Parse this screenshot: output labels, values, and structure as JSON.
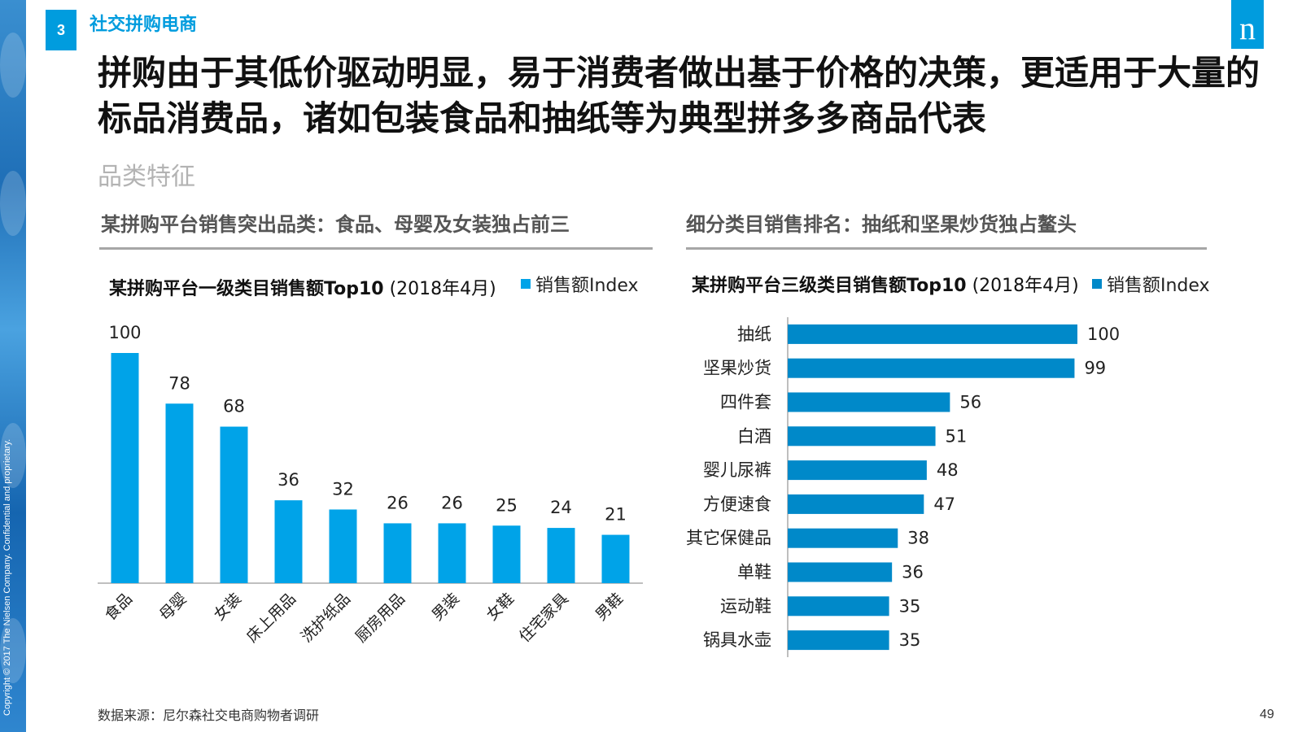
{
  "header": {
    "section_number": "3",
    "section_title": "社交拼购电商",
    "logo_letter": "n",
    "headline": "拼购由于其低价驱动明显，易于消费者做出基于价格的决策，更适用于大量的标品消费品，诸如包装食品和抽纸等为典型拼多多商品代表",
    "subhead": "品类特征"
  },
  "left_panel": {
    "title": "某拼购平台销售突出品类：食品、母婴及女装独占前三",
    "chart_title_bold": "某拼购平台一级类目销售额Top10",
    "chart_title_rest": " (2018年4月)",
    "legend_label": "销售额Index"
  },
  "right_panel": {
    "title": "细分类目销售排名：抽纸和坚果炒货独占鳌头",
    "chart_title_bold": "某拼购平台三级类目销售额Top10",
    "chart_title_rest": " (2018年4月)",
    "legend_label": "销售额Index"
  },
  "footer": {
    "source": "数据来源：尼尔森社交电商购物者调研",
    "page_number": "49",
    "copyright": "Copyright © 2017 The Nielsen Company. Confidential and proprietary."
  },
  "colors": {
    "accent": "#009cde",
    "bar_left": "#00a3e8",
    "bar_right": "#0089c9"
  },
  "chart_data": [
    {
      "type": "bar",
      "orientation": "vertical",
      "title": "某拼购平台一级类目销售额Top10 (2018年4月)",
      "categories": [
        "食品",
        "母婴",
        "女装",
        "床上用品",
        "洗护纸品",
        "厨房用品",
        "男装",
        "女鞋",
        "住宅家具",
        "男鞋"
      ],
      "series": [
        {
          "name": "销售额Index",
          "values": [
            100,
            78,
            68,
            36,
            32,
            26,
            26,
            25,
            24,
            21
          ]
        }
      ],
      "ylim": [
        0,
        100
      ],
      "grid": false,
      "legend": "top-right"
    },
    {
      "type": "bar",
      "orientation": "horizontal",
      "title": "某拼购平台三级类目销售额Top10 (2018年4月)",
      "categories": [
        "抽纸",
        "坚果炒货",
        "四件套",
        "白酒",
        "婴儿尿裤",
        "方便速食",
        "其它保健品",
        "单鞋",
        "运动鞋",
        "锅具水壶"
      ],
      "series": [
        {
          "name": "销售额Index",
          "values": [
            100,
            99,
            56,
            51,
            48,
            47,
            38,
            36,
            35,
            35
          ]
        }
      ],
      "xlim": [
        0,
        100
      ],
      "grid": false,
      "legend": "top-right"
    }
  ]
}
